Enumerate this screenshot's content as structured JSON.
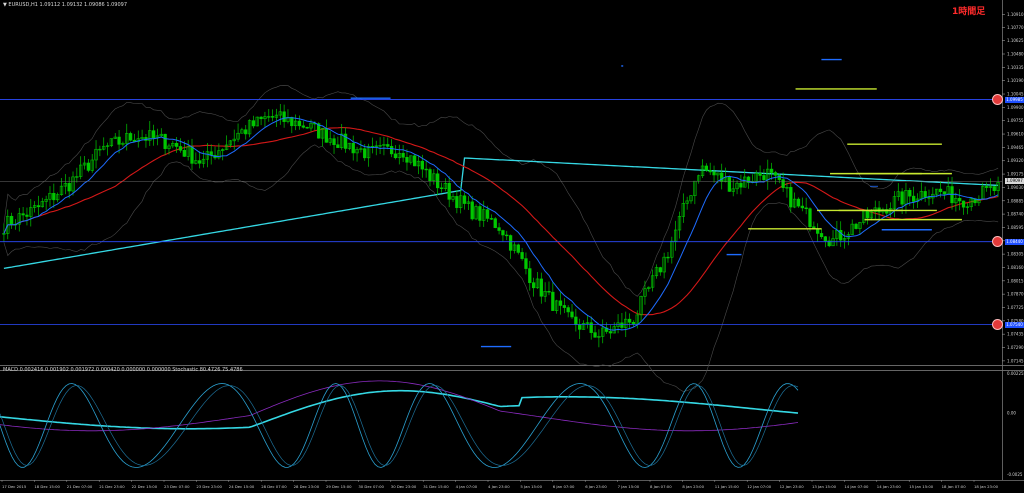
{
  "header": {
    "symbol_line": "▼ EURUSD,H1  1.09112 1.09132 1.09086 1.09097",
    "indicator_line": "MACD 0.002416 0.001902 0.001972 0.000420 0.000000 0.000000  Stochastic 80.4726 75.4786",
    "timeframe_label": "1時間足"
  },
  "colors": {
    "background": "#000000",
    "bull_candle": "#00c800",
    "bear_candle": "#00c800",
    "ma_fast": "#1e6cff",
    "ma_mid": "#d41818",
    "ma_slow": "#35d8e4",
    "bands": "#4a4a4a",
    "level_line": "#2c4cff",
    "marker_blue": "#1e6cff",
    "marker_yellow": "#c8e830",
    "macd_main": "#35d8e4",
    "macd_signal": "#8a2bbf",
    "stoch": "#2aa0d0"
  },
  "chart_data": [
    {
      "type": "candlestick",
      "y_ticks": [
        "1.10910",
        "1.10770",
        "1.10625",
        "1.10480",
        "1.10335",
        "1.10190",
        "1.10045",
        "1.09900",
        "1.09755",
        "1.09610",
        "1.09465",
        "1.09320",
        "1.09175",
        "1.09030",
        "1.08885",
        "1.08740",
        "1.08595",
        "1.08450",
        "1.08305",
        "1.08160",
        "1.08015",
        "1.07870",
        "1.07725",
        "1.07580",
        "1.07435",
        "1.07290",
        "1.07145"
      ],
      "ylim": [
        1.071,
        1.1098
      ],
      "x_ticks": [
        "17 Dec 2015",
        "18 Dec 15:00",
        "21 Dec 07:00",
        "21 Dec 23:00",
        "22 Dec 15:00",
        "23 Dec 07:00",
        "23 Dec 23:00",
        "24 Dec 15:00",
        "28 Dec 07:00",
        "28 Dec 23:00",
        "29 Dec 15:00",
        "30 Dec 07:00",
        "30 Dec 23:00",
        "31 Dec 15:00",
        "4 Jan 07:00",
        "4 Jan 23:00",
        "5 Jan 15:00",
        "6 Jan 07:00",
        "6 Jan 23:00",
        "7 Jan 15:00",
        "8 Jan 07:00",
        "8 Jan 23:00",
        "11 Jan 15:00",
        "12 Jan 07:00",
        "12 Jan 23:00",
        "13 Jan 15:00",
        "14 Jan 07:00",
        "14 Jan 23:00",
        "15 Jan 15:00",
        "18 Jan 07:00",
        "18 Jan 23:00"
      ],
      "close_anchors": [
        1.0862,
        1.088,
        1.0908,
        1.0945,
        1.096,
        1.0952,
        1.093,
        1.096,
        1.098,
        1.0972,
        1.0955,
        1.094,
        1.0945,
        1.091,
        1.088,
        1.086,
        1.08,
        1.076,
        1.0742,
        1.076,
        1.083,
        1.0925,
        1.0905,
        1.092,
        1.088,
        1.0845,
        1.087,
        1.089,
        1.09,
        1.089,
        1.0902
      ],
      "horizontal_levels": [
        {
          "price": 1.09985,
          "tag": "1.09985",
          "badge": "R1"
        },
        {
          "price": 1.0844,
          "tag": "1.08440",
          "badge": "S1"
        },
        {
          "price": 1.0754,
          "tag": "1.07540",
          "badge": "S2"
        }
      ],
      "current_price": {
        "price": 1.09097,
        "tag": "1.09097"
      },
      "markers": [
        {
          "color": "marker_blue",
          "price": 1.1,
          "x_from": 0.35,
          "x_to": 0.43
        },
        {
          "color": "marker_blue",
          "price": 1.1035,
          "x_from": 0.62,
          "x_to": 0.7
        },
        {
          "color": "marker_blue",
          "price": 1.1042,
          "x_from": 0.84,
          "x_to": 0.93
        },
        {
          "color": "marker_blue",
          "price": 1.083,
          "x_from": 0.74,
          "x_to": 0.82
        },
        {
          "color": "marker_blue",
          "price": 1.073,
          "x_from": 0.48,
          "x_to": 0.57
        },
        {
          "color": "marker_blue",
          "price": 1.0857,
          "x_from": 0.93,
          "x_to": 1.0
        },
        {
          "color": "marker_yellow",
          "price": 1.101,
          "x_from": 0.875,
          "x_to": 0.9
        },
        {
          "color": "marker_yellow",
          "price": 1.095,
          "x_from": 0.94,
          "x_to": 0.96
        },
        {
          "color": "marker_yellow",
          "price": 1.0918,
          "x_from": 0.95,
          "x_to": 0.97
        },
        {
          "color": "marker_yellow",
          "price": 1.0918,
          "x_from": 0.92,
          "x_to": 0.94
        },
        {
          "color": "marker_yellow",
          "price": 1.0878,
          "x_from": 0.9,
          "x_to": 0.925
        },
        {
          "color": "marker_yellow",
          "price": 1.0878,
          "x_from": 0.935,
          "x_to": 0.95
        },
        {
          "color": "marker_yellow",
          "price": 1.0858,
          "x_from": 0.82,
          "x_to": 0.845
        },
        {
          "color": "marker_yellow",
          "price": 1.0868,
          "x_from": 0.96,
          "x_to": 0.98
        }
      ]
    },
    {
      "type": "line",
      "y_ticks": [
        "0.002255",
        "0.00",
        "-0.0025"
      ],
      "series_count": 3
    }
  ]
}
